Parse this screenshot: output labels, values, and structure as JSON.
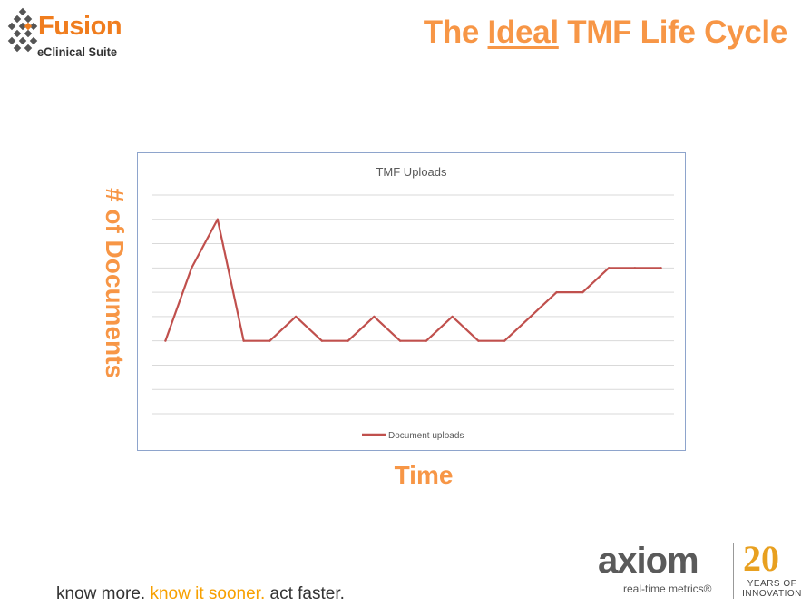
{
  "logo": {
    "name": "Fusion",
    "subtitle": "eClinical Suite"
  },
  "slide_title": {
    "pre": "The ",
    "underlined": "Ideal",
    "post": " TMF Life Cycle"
  },
  "axis_labels": {
    "y": "# of Documents",
    "x": "Time"
  },
  "chart_data": {
    "type": "line",
    "title": "TMF Uploads",
    "xlabel": "Time",
    "ylabel": "# of Documents",
    "grid": true,
    "legend_placement": "bottom",
    "series": [
      {
        "name": "Document uploads",
        "color": "#c0504d",
        "values": [
          2,
          5,
          7,
          2,
          2,
          3,
          2,
          2,
          3,
          2,
          2,
          3,
          2,
          2,
          3,
          4,
          4,
          5,
          5,
          5
        ]
      }
    ],
    "ylim": [
      -1,
      8
    ]
  },
  "footer": {
    "tagline_part1": "know more. ",
    "tagline_part2": "know it sooner.",
    "tagline_part3": " act faster."
  },
  "brand_logo": {
    "name": "axiom",
    "subtitle": "real-time metrics®",
    "anniversary_number": "20",
    "anniversary_text": "YEARS OF INNOVATION"
  },
  "colors": {
    "title_orange": "#f79646",
    "brand_orange": "#f07d1e",
    "line_red": "#c0504d",
    "grid_gray": "#d9d9d9",
    "chart_border": "#8ea4cc"
  }
}
